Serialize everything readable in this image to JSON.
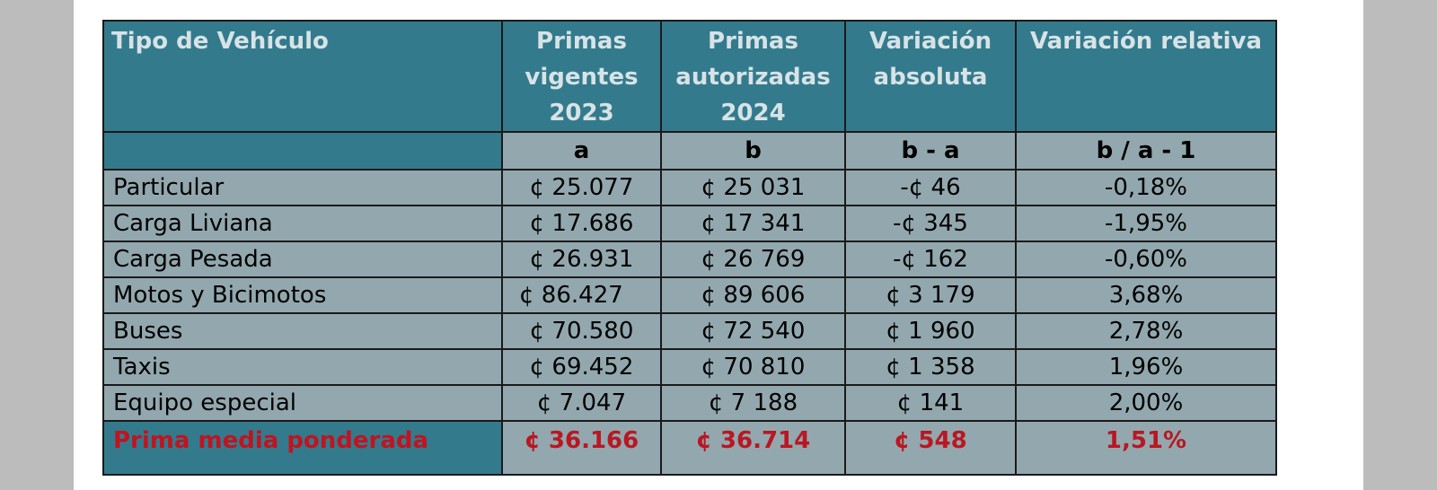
{
  "table": {
    "headers": [
      "Tipo de Vehículo",
      "Primas vigentes 2023",
      "Primas autorizadas 2024",
      "Variación absoluta",
      "Variación relativa"
    ],
    "subheaders": [
      "",
      "a",
      "b",
      "b - a",
      "b / a - 1"
    ],
    "rows": [
      [
        "Particular",
        "¢ 25.077",
        "¢ 25 031",
        "-¢ 46",
        "-0,18%"
      ],
      [
        "Carga Liviana",
        "¢ 17.686",
        "¢ 17 341",
        "-¢ 345",
        "-1,95%"
      ],
      [
        "Carga Pesada",
        "¢ 26.931",
        "¢ 26 769",
        "-¢ 162",
        "-0,60%"
      ],
      [
        "Motos y Bicimotos",
        "¢ 86.427",
        "¢ 89 606",
        "¢ 3 179",
        "3,68%"
      ],
      [
        "Buses",
        "¢ 70.580",
        "¢ 72 540",
        "¢ 1 960",
        "2,78%"
      ],
      [
        "Taxis",
        "¢ 69.452",
        "¢ 70 810",
        "¢ 1 358",
        "1,96%"
      ],
      [
        "Equipo especial",
        "¢ 7.047",
        "¢ 7 188",
        "¢ 141",
        "2,00%"
      ]
    ],
    "total": [
      "Prima media ponderada",
      "¢ 36.166",
      "¢ 36.714",
      "¢ 548",
      "1,51%"
    ]
  },
  "colors": {
    "header_bg": "#347a8d",
    "cell_bg": "#92a8ae",
    "header_text": "#d7e3e6",
    "total_text": "#c0141f"
  }
}
